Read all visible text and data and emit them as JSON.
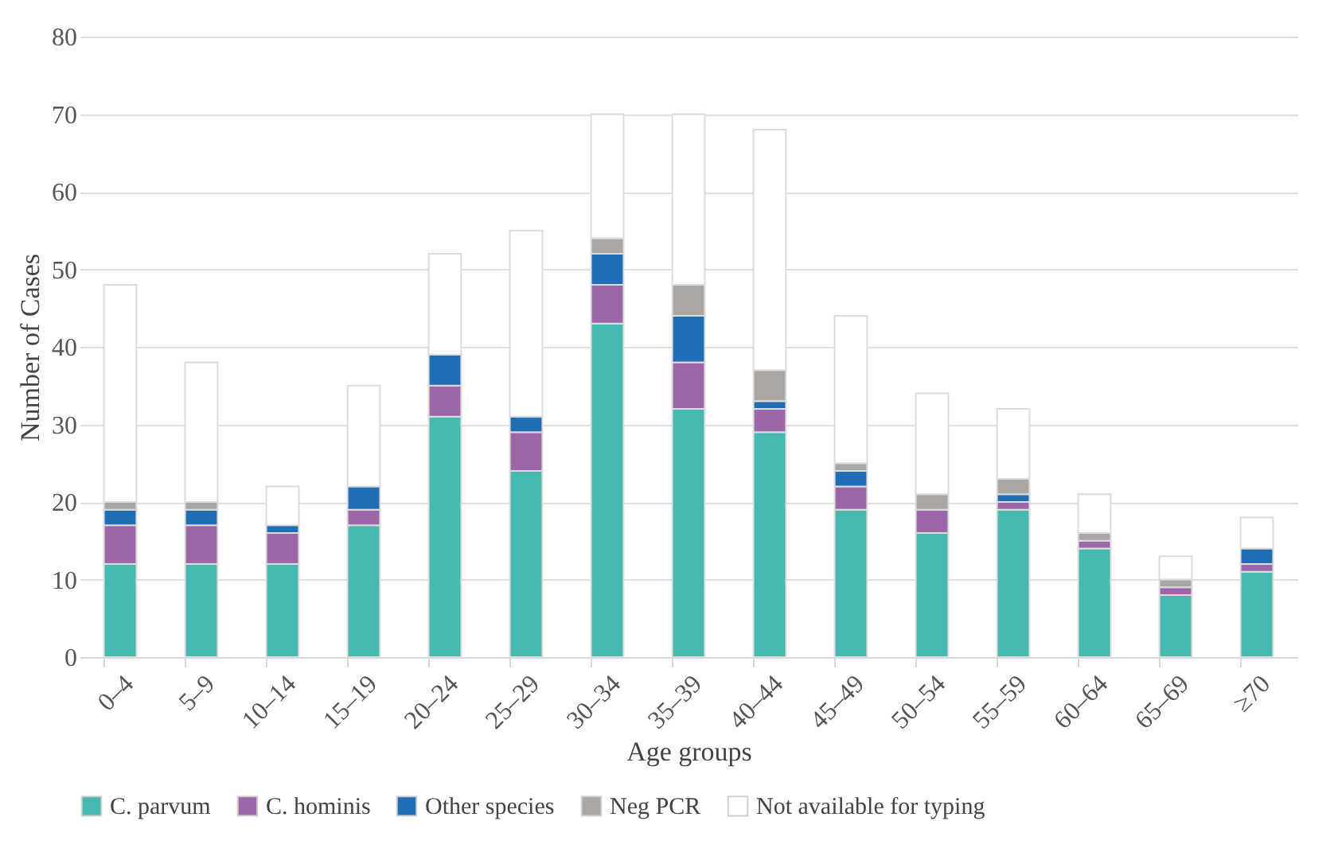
{
  "chart_data": {
    "type": "bar",
    "stacked": true,
    "xlabel": "Age groups",
    "ylabel": "Number of Cases",
    "categories": [
      "0–4",
      "5–9",
      "10–14",
      "15–19",
      "20–24",
      "25–29",
      "30–34",
      "35–39",
      "40–44",
      "45–49",
      "50–54",
      "55–59",
      "60–64",
      "65–69",
      "≥70"
    ],
    "series": [
      {
        "name": "C. parvum",
        "color": "#45b8b0",
        "values": [
          12,
          12,
          12,
          17,
          31,
          24,
          43,
          32,
          29,
          19,
          16,
          19,
          14,
          8,
          11
        ]
      },
      {
        "name": "C. hominis",
        "color": "#9c66a8",
        "values": [
          5,
          5,
          4,
          2,
          4,
          5,
          5,
          6,
          3,
          3,
          3,
          1,
          1,
          1,
          1
        ]
      },
      {
        "name": "Other species",
        "color": "#1f6db5",
        "values": [
          2,
          2,
          1,
          3,
          4,
          2,
          4,
          6,
          1,
          2,
          0,
          1,
          0,
          0,
          2
        ]
      },
      {
        "name": "Neg PCR",
        "color": "#aaa6a3",
        "values": [
          1,
          1,
          0,
          0,
          0,
          0,
          2,
          4,
          4,
          1,
          2,
          2,
          1,
          1,
          0
        ]
      },
      {
        "name": "Not available for typing",
        "color": "#ffffff",
        "values": [
          28,
          18,
          5,
          13,
          13,
          24,
          16,
          22,
          31,
          19,
          13,
          9,
          5,
          3,
          4
        ]
      }
    ],
    "ylim": [
      0,
      80
    ],
    "yticks": [
      0,
      10,
      20,
      30,
      40,
      50,
      60,
      70,
      80
    ],
    "grid": "y",
    "legend": "bottom"
  }
}
